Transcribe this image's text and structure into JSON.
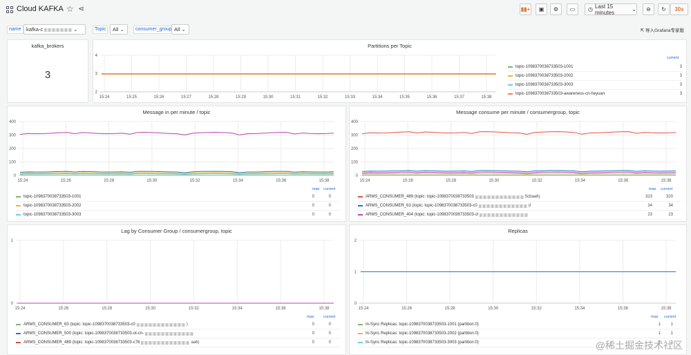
{
  "header": {
    "title": "Cloud KAFKA",
    "time_range": "Last 15 minutes",
    "refresh_interval": "30s"
  },
  "variables": {
    "name_label": "name",
    "name_value": "kafka-c",
    "topic_label": "Topic",
    "topic_value": "All",
    "consumer_group_label": "consumer_group",
    "consumer_group_value": "All",
    "import_link": "导入Grafana专家版"
  },
  "panels": {
    "brokers": {
      "title": "kafka_brokers",
      "value": "3"
    },
    "partitions": {
      "title": "Partitions per Topic",
      "legend_header": "current",
      "x_ticks": [
        "15:24",
        "15:25",
        "15:26",
        "15:27",
        "15:28",
        "15:29",
        "15:30",
        "15:31",
        "15:32",
        "15:33",
        "15:34",
        "15:35",
        "15:36",
        "15:37",
        "15:38"
      ],
      "y_ticks": [
        "4",
        "3",
        "2"
      ],
      "series": [
        {
          "name": "topic-1098370038733503-1001",
          "current": "3",
          "color": "#7eb26d"
        },
        {
          "name": "topic-1098370038733503-2002",
          "current": "3",
          "color": "#eab839"
        },
        {
          "name": "topic-1098370038733503-3003",
          "current": "3",
          "color": "#6ed0e0"
        },
        {
          "name": "topic-1098370038733503-awareness-cn-heyuan",
          "current": "3",
          "color": "#ef843c"
        }
      ]
    },
    "msg_in": {
      "title": "Message in per minute  /  topic",
      "x_ticks": [
        "15:24",
        "15:26",
        "15:28",
        "15:30",
        "15:32",
        "15:34",
        "15:36",
        "15:38"
      ],
      "y_ticks": [
        "400",
        "300",
        "200",
        "100",
        "0"
      ],
      "legend_max": "max",
      "legend_current": "current",
      "series": [
        {
          "name": "topic-1098370038733503-1001",
          "max": "0",
          "current": "0",
          "color": "#7eb26d"
        },
        {
          "name": "topic-1098370038733503-2002",
          "max": "0",
          "current": "0",
          "color": "#eab839"
        },
        {
          "name": "topic-1098370038733503-3003",
          "max": "0",
          "current": "0",
          "color": "#6ed0e0"
        }
      ]
    },
    "msg_consume": {
      "title": "Message consume per minute / consumergroup, topic",
      "x_ticks": [
        "15:24",
        "15:26",
        "15:28",
        "15:30",
        "15:32",
        "15:34",
        "15:36",
        "15:38"
      ],
      "y_ticks": [
        "400",
        "300",
        "200",
        "100",
        "0"
      ],
      "legend_max": "max",
      "legend_current": "current",
      "series": [
        {
          "name": "ARMS_CONSUMER_489 (topic: topic-1098370038733503",
          "suffix": "5cbaa6)",
          "max": "323",
          "current": "320",
          "color": "#e24d42"
        },
        {
          "name": "ARMS_CONSUMER_63 (topic: topic-1098370038733503-c0",
          "suffix": "d",
          "max": "34",
          "current": "34",
          "color": "#1f78c1"
        },
        {
          "name": "ARMS_CONSUMER_404 (topic: topic-1098370038733503-cl",
          "suffix": "",
          "max": "23",
          "current": "23",
          "color": "#ba43a9"
        }
      ]
    },
    "lag": {
      "title": "Lag by Consumer Group / consumergroup, topic",
      "x_ticks": [
        "15:24",
        "15:26",
        "15:28",
        "15:30",
        "15:32",
        "15:34",
        "15:36",
        "15:38"
      ],
      "y_ticks": [
        "1",
        "0"
      ],
      "legend_max": "max",
      "legend_current": "current",
      "series": [
        {
          "name": "ARMS_CONSUMER_63 (topic: topic-1098370038733503-c0",
          "suffix": ")",
          "max": "0",
          "current": "0",
          "color": "#7eb26d"
        },
        {
          "name": "ARMS_CONSUMER_500 (topic: topic-1098370038733503-ot-cn-",
          "suffix": "",
          "max": "0",
          "current": "0",
          "color": "#1f78c1"
        },
        {
          "name": "ARMS_CONSUMER_489 (topic: topic-1098370038733503-c76",
          "suffix": "aa6)",
          "max": "0",
          "current": "0",
          "color": "#e24d42"
        }
      ]
    },
    "replicas": {
      "title": "Replicas",
      "x_ticks": [
        "15:24",
        "15:26",
        "15:28",
        "15:30",
        "15:32",
        "15:34",
        "15:36",
        "15:38"
      ],
      "y_ticks": [
        "2",
        "1",
        "0"
      ],
      "legend_max": "max",
      "legend_current": "current",
      "series": [
        {
          "name": "In-Sync Replicas: topic-1098370038733503-1001 (partition:0)",
          "max": "1",
          "current": "1",
          "color": "#7eb26d"
        },
        {
          "name": "In-Sync Replicas: topic-1098370038733503-2002 (partition:0)",
          "max": "1",
          "current": "1",
          "color": "#eab839"
        },
        {
          "name": "In-Sync Replicas: topic-1098370038733503-3003 (partition:0)",
          "max": "1",
          "current": "1",
          "color": "#6ed0e0"
        }
      ]
    }
  },
  "watermark": "@稀土掘金技术社区"
}
